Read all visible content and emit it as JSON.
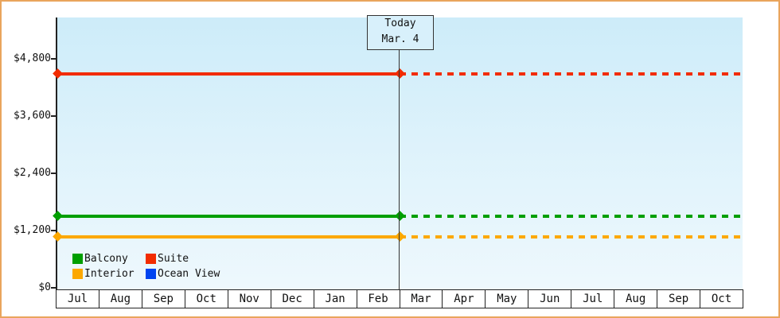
{
  "chart_data": {
    "type": "line",
    "title": "",
    "description": "Cruise cabin price history/forecast: flat price lines per cabin category, solid before today and dashed (projected) after today.",
    "x_categories": [
      "Jul",
      "Aug",
      "Sep",
      "Oct",
      "Nov",
      "Dec",
      "Jan",
      "Feb",
      "Mar",
      "Apr",
      "May",
      "Jun",
      "Jul",
      "Aug",
      "Sep",
      "Oct"
    ],
    "y_tick_labels": [
      "$4,800",
      "$3,600",
      "$2,400",
      "$1,200",
      "$0"
    ],
    "y_axis": {
      "min": 0,
      "tick_interval": 1200,
      "top_label": 4800,
      "unit": "USD"
    },
    "grid": false,
    "legend_position": "bottom-left-inside-plot",
    "series": [
      {
        "name": "Balcony",
        "color": "#009f00",
        "value_estimate": 1490,
        "line": "constant, solid then dashed after today"
      },
      {
        "name": "Suite",
        "color": "#f22c00",
        "value_estimate": 4460,
        "line": "constant, solid then dashed after today"
      },
      {
        "name": "Interior",
        "color": "#fca800",
        "value_estimate": 1070,
        "line": "constant, solid then dashed after today"
      },
      {
        "name": "Ocean View",
        "color": "#0044f0",
        "value_estimate": null,
        "line": "no line visible on chart"
      }
    ],
    "today": {
      "line1": "Today",
      "line2": "Mar. 4",
      "x_category": "Mar"
    }
  },
  "frame": {
    "border_color": "#e9a55d",
    "plot_bg_top": "#cdecf9",
    "plot_bg_bottom": "#eef8fd"
  }
}
